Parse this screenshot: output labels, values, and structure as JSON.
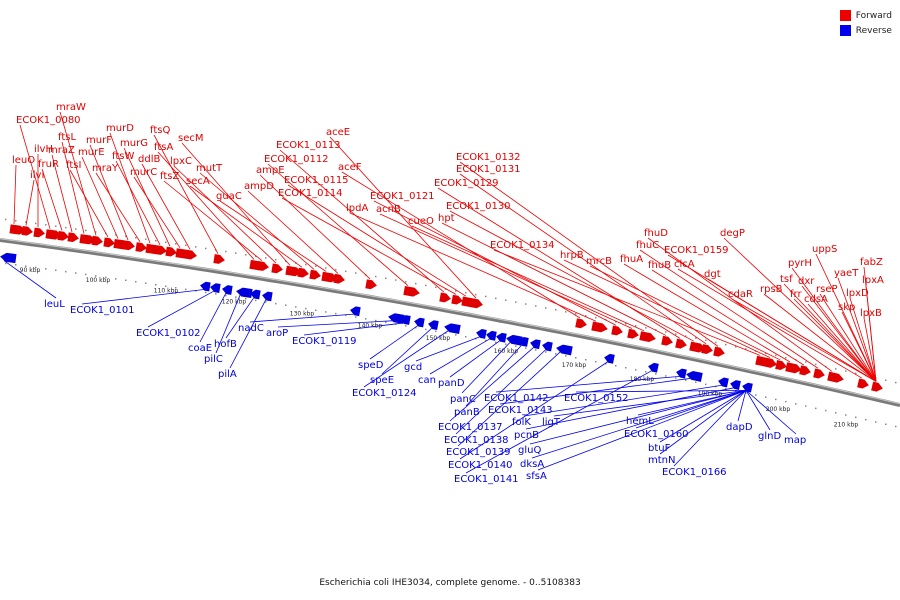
{
  "legend": {
    "forward_label": "Forward",
    "reverse_label": "Reverse",
    "forward_color": "#ee0000",
    "reverse_color": "#0000ee"
  },
  "caption": "Escherichia coli IHE3034, complete genome. - 0..5108383",
  "scale_ticks": [
    "90 kbp",
    "100 kbp",
    "110 kbp",
    "120 kbp",
    "130 kbp",
    "140 kbp",
    "150 kbp",
    "160 kbp",
    "170 kbp",
    "180 kbp",
    "190 kbp",
    "200 kbp",
    "210 kbp"
  ],
  "forward_genes": [
    "leuO",
    "ilvI",
    "ilvH",
    "ECOK1_0080",
    "fruR",
    "mraZ",
    "ftsL",
    "mraW",
    "ftsI",
    "murE",
    "murF",
    "mraY",
    "murD",
    "ftsW",
    "murG",
    "murC",
    "ddlB",
    "ftsQ",
    "ftsA",
    "ftsZ",
    "lpxC",
    "secM",
    "secA",
    "mutT",
    "guaC",
    "ampD",
    "ampE",
    "ECOK1_0112",
    "ECOK1_0113",
    "ECOK1_0114",
    "ECOK1_0115",
    "aceE",
    "aceF",
    "lpdA",
    "ECOK1_0121",
    "acnB",
    "cueO",
    "hpt",
    "ECOK1_0129",
    "ECOK1_0130",
    "ECOK1_0131",
    "ECOK1_0132",
    "ECOK1_0134",
    "hrpB",
    "mrcB",
    "fhuA",
    "fhuB",
    "fhuC",
    "fhuD",
    "clcA",
    "ECOK1_0159",
    "dgt",
    "degP",
    "cdaR",
    "rpsB",
    "tsf",
    "frr",
    "pyrH",
    "dxr",
    "rseP",
    "uppS",
    "cdsA",
    "skp",
    "yaeT",
    "lpxD",
    "fabZ",
    "lpxA",
    "lpxB"
  ],
  "reverse_genes": [
    "leuL",
    "ECOK1_0101",
    "ECOK1_0102",
    "coaE",
    "pilC",
    "hofB",
    "pilA",
    "nadC",
    "aroP",
    "ECOK1_0119",
    "speD",
    "speE",
    "ECOK1_0124",
    "gcd",
    "can",
    "panD",
    "panC",
    "panB",
    "ECOK1_0137",
    "ECOK1_0138",
    "ECOK1_0139",
    "ECOK1_0140",
    "ECOK1_0141",
    "ECOK1_0142",
    "ECOK1_0143",
    "folK",
    "pcnB",
    "gluQ",
    "dksA",
    "sfsA",
    "ligT",
    "ECOK1_0152",
    "hemL",
    "ECOK1_0160",
    "btuF",
    "mtnN",
    "ECOK1_0166",
    "dapD",
    "glnD",
    "map"
  ]
}
